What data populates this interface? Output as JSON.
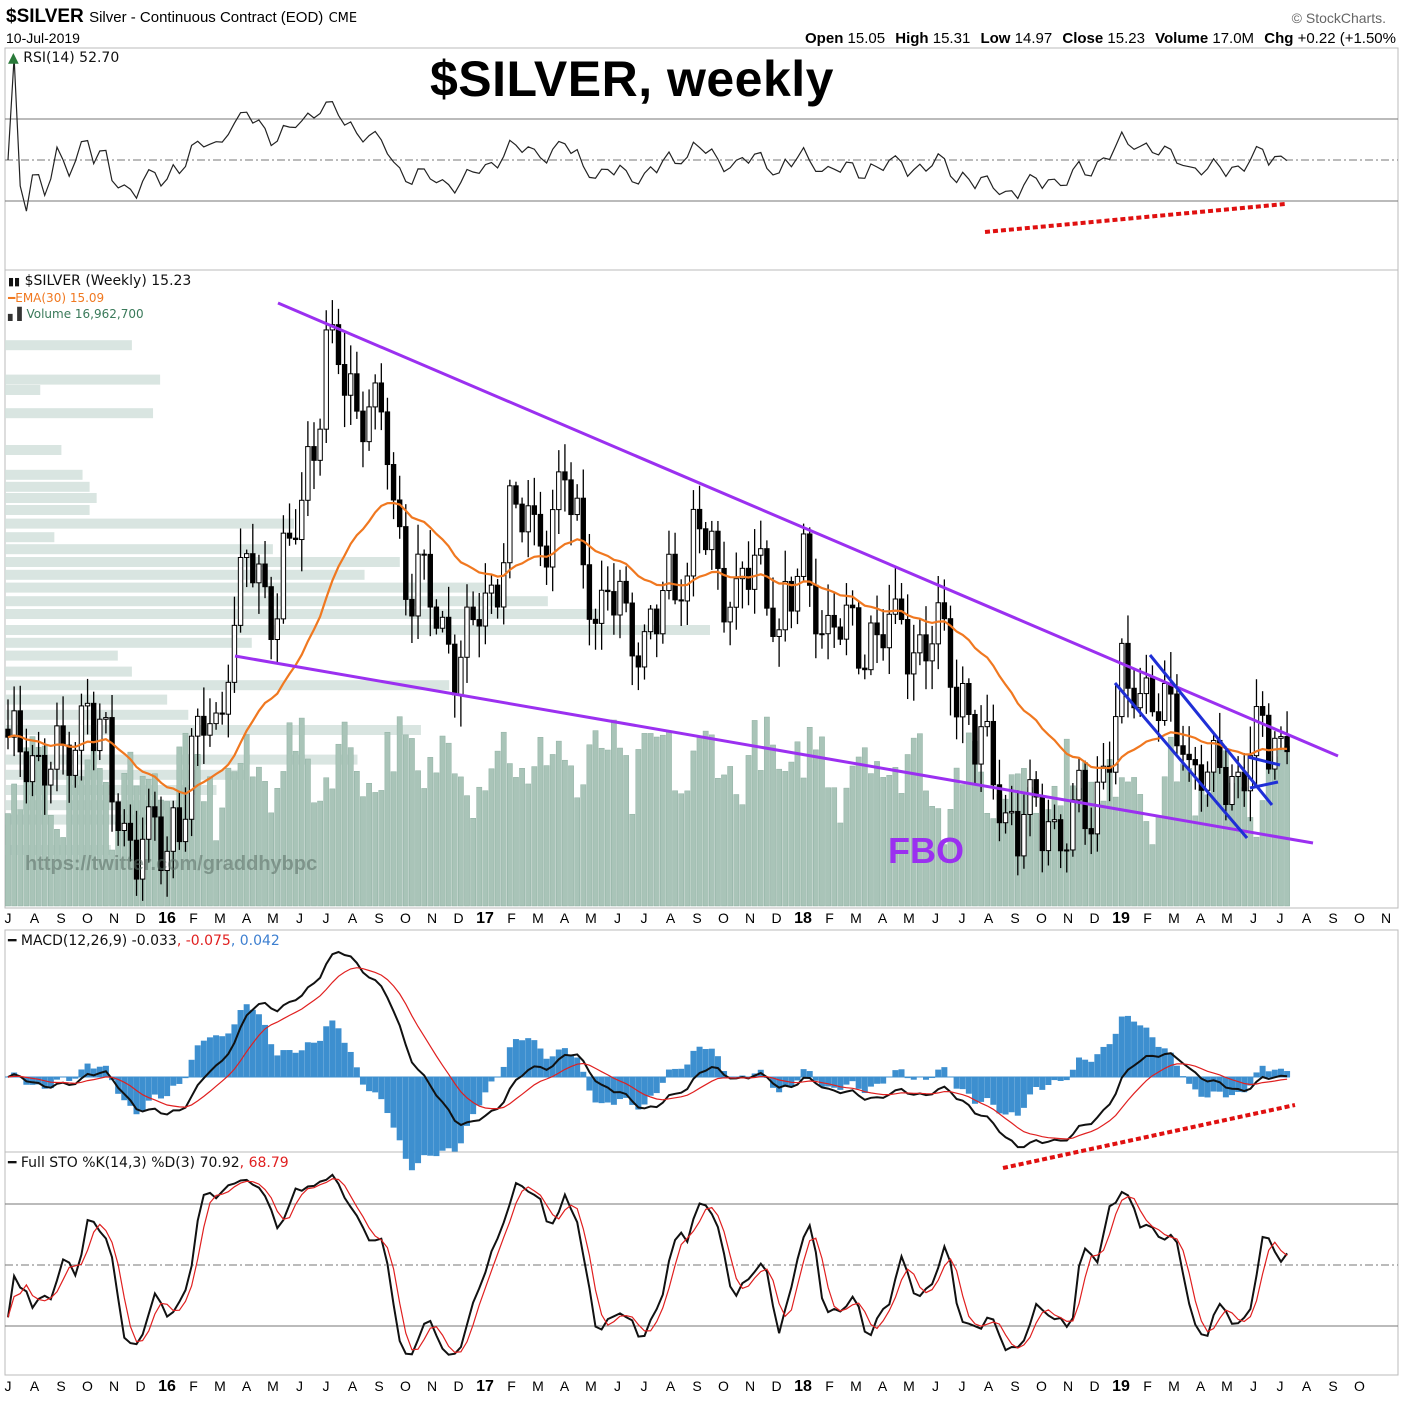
{
  "header": {
    "symbol": "$SILVER",
    "description": "Silver - Continuous Contract (EOD)",
    "exchange": "CME",
    "date": "10-Jul-2019",
    "credit": "© StockCharts.",
    "ohlc": {
      "open_label": "Open",
      "open": "15.05",
      "high_label": "High",
      "high": "15.31",
      "low_label": "Low",
      "low": "14.97",
      "close_label": "Close",
      "close": "15.23",
      "volume_label": "Volume",
      "volume": "17.0M",
      "chg_label": "Chg",
      "chg": "+0.22 (+1.50%"
    }
  },
  "annotations": {
    "title": "$SILVER, weekly",
    "fbo": "FBO",
    "watermark": "https://twitter.com/graddhybpc"
  },
  "legends": {
    "rsi": "RSI(14) 52.70",
    "price": "$SILVER (Weekly) 15.23",
    "ema": "EMA(30) 15.09",
    "volume": "Volume 16,962,700",
    "macd": "MACD(12,26,9) -0.033",
    "macd_signal": ", -0.075",
    "macd_hist": ", 0.042",
    "sto": "Full STO %K(14,3) %D(3) 70.92",
    "sto_d": ", 68.79"
  },
  "colors": {
    "ema": "#f07820",
    "volume": "#a9c4b8",
    "vbp": "#d2e0dc",
    "trend_purple": "#9b30f0",
    "channel_blue": "#1f2fd6",
    "divergence_red": "#e01010",
    "macd_hist": "#3d8fcf",
    "signal_red": "#e02020"
  },
  "chart_data": {
    "type": "candlestick",
    "interval": "weekly",
    "title": "$SILVER, weekly",
    "x_range": [
      "Jul 2015",
      "Jul 2019"
    ],
    "x_tick_labels": [
      "J",
      "A",
      "S",
      "O",
      "N",
      "D",
      "16",
      "F",
      "M",
      "A",
      "M",
      "J",
      "J",
      "A",
      "S",
      "O",
      "N",
      "D",
      "17",
      "F",
      "M",
      "A",
      "M",
      "J",
      "J",
      "A",
      "S",
      "O",
      "N",
      "D",
      "18",
      "F",
      "M",
      "A",
      "M",
      "J",
      "J",
      "A",
      "S",
      "O",
      "N",
      "D",
      "19",
      "F",
      "M",
      "A",
      "M",
      "J",
      "J",
      "A",
      "S",
      "O",
      "N"
    ],
    "ylim": [
      13.3,
      21.0
    ],
    "monthly_closes": [
      15.4,
      15.1,
      14.9,
      16.0,
      14.6,
      14.0,
      14.1,
      15.1,
      15.9,
      17.6,
      17.1,
      18.1,
      20.2,
      19.7,
      19.4,
      17.6,
      17.0,
      16.5,
      17.1,
      18.2,
      17.9,
      18.5,
      17.2,
      17.0,
      16.5,
      17.2,
      18.0,
      17.2,
      17.4,
      16.9,
      17.5,
      16.7,
      16.6,
      16.9,
      16.7,
      16.6,
      15.9,
      14.9,
      14.3,
      14.4,
      14.3,
      14.6,
      15.9,
      16.0,
      15.4,
      15.0,
      14.8,
      15.4,
      15.23
    ],
    "last_close": 15.23,
    "volume_by_price": [
      {
        "price": 20.31,
        "vol": 18
      },
      {
        "price": 19.88,
        "vol": 22
      },
      {
        "price": 19.75,
        "vol": 5
      },
      {
        "price": 19.46,
        "vol": 21
      },
      {
        "price": 19.0,
        "vol": 8
      },
      {
        "price": 18.69,
        "vol": 11
      },
      {
        "price": 18.54,
        "vol": 12
      },
      {
        "price": 18.4,
        "vol": 13
      },
      {
        "price": 18.25,
        "vol": 12
      },
      {
        "price": 18.08,
        "vol": 41
      },
      {
        "price": 17.91,
        "vol": 7
      },
      {
        "price": 17.76,
        "vol": 38
      },
      {
        "price": 17.6,
        "vol": 56
      },
      {
        "price": 17.44,
        "vol": 51
      },
      {
        "price": 17.28,
        "vol": 68
      },
      {
        "price": 17.11,
        "vol": 77
      },
      {
        "price": 16.95,
        "vol": 85
      },
      {
        "price": 16.75,
        "vol": 100
      },
      {
        "price": 16.59,
        "vol": 35
      },
      {
        "price": 16.43,
        "vol": 16
      },
      {
        "price": 16.23,
        "vol": 18
      },
      {
        "price": 16.06,
        "vol": 63
      },
      {
        "price": 15.88,
        "vol": 23
      },
      {
        "price": 15.69,
        "vol": 26
      },
      {
        "price": 15.5,
        "vol": 59
      },
      {
        "price": 15.13,
        "vol": 50
      },
      {
        "price": 14.94,
        "vol": 34
      },
      {
        "price": 14.75,
        "vol": 30
      },
      {
        "price": 14.56,
        "vol": 25
      },
      {
        "price": 14.38,
        "vol": 20
      },
      {
        "price": 14.0,
        "vol": 15
      }
    ],
    "indicators": {
      "ema_period": 30,
      "rsi": {
        "period": 14,
        "last": 52.7,
        "levels": [
          30,
          50,
          70
        ]
      },
      "macd": {
        "fast": 12,
        "slow": 26,
        "signal": 9,
        "last": -0.033,
        "signal_last": -0.075,
        "hist_last": 0.042
      },
      "sto": {
        "k": 14,
        "smooth": 3,
        "d": 3,
        "k_last": 70.92,
        "d_last": 68.79,
        "levels": [
          20,
          50,
          80
        ]
      }
    }
  }
}
